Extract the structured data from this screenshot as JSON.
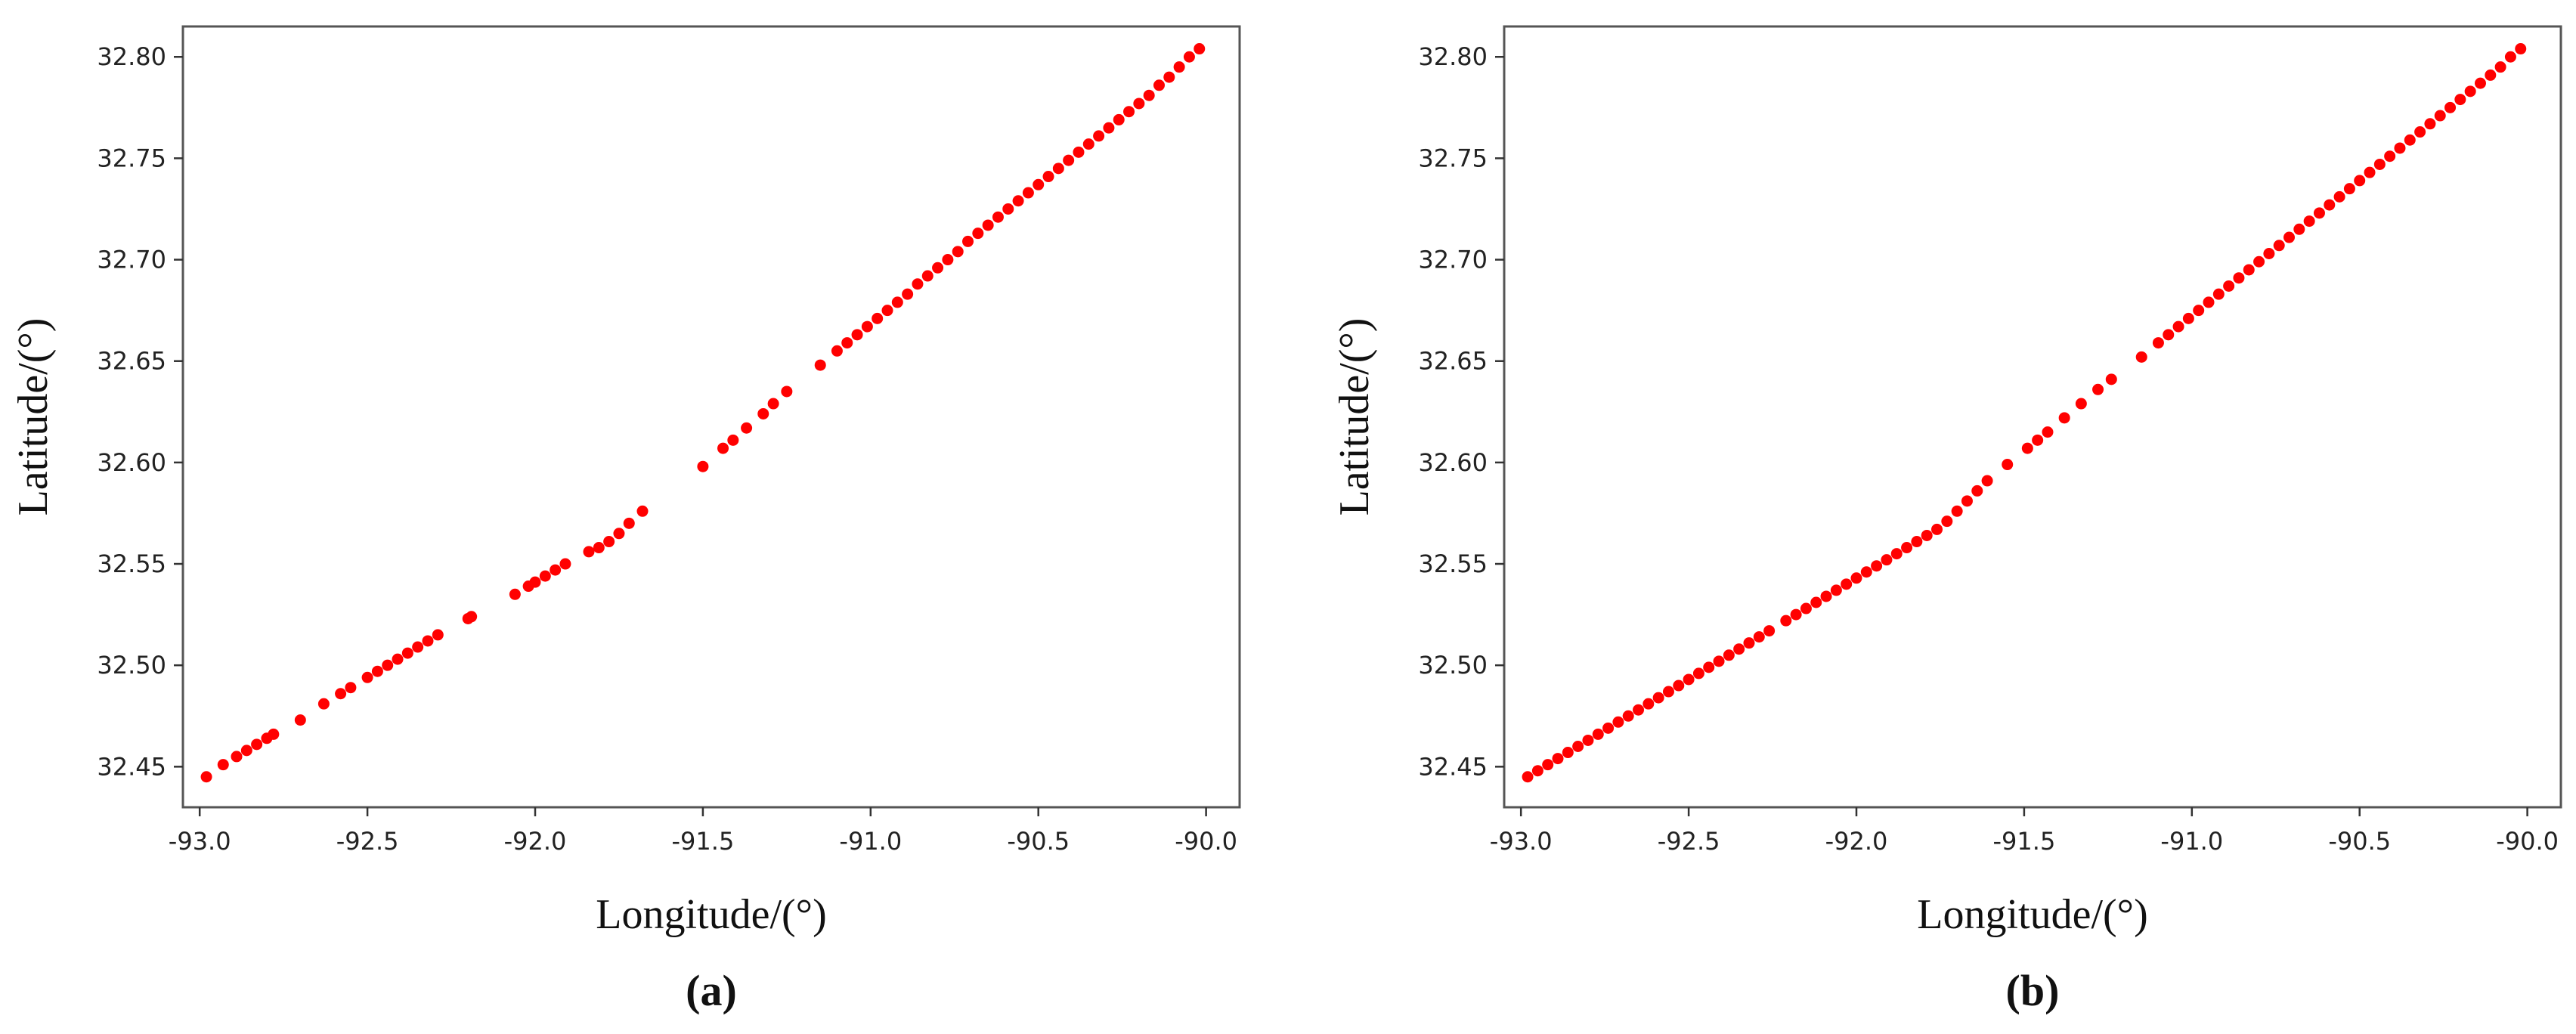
{
  "chart_data": [
    {
      "type": "scatter",
      "panel_label": "(a)",
      "xlabel": "Longitude/(°)",
      "ylabel": "Latitude/(°)",
      "xlim": [
        -93.05,
        -89.9
      ],
      "ylim": [
        32.43,
        32.815
      ],
      "xticks": [
        "-93.0",
        "-92.5",
        "-92.0",
        "-91.5",
        "-91.0",
        "-90.5",
        "-90.0"
      ],
      "yticks": [
        "32.45",
        "32.50",
        "32.55",
        "32.60",
        "32.65",
        "32.70",
        "32.75",
        "32.80"
      ],
      "grid": false,
      "color": "#ff0000",
      "points": [
        [
          -92.98,
          32.445
        ],
        [
          -92.93,
          32.451
        ],
        [
          -92.89,
          32.455
        ],
        [
          -92.86,
          32.458
        ],
        [
          -92.83,
          32.461
        ],
        [
          -92.8,
          32.464
        ],
        [
          -92.78,
          32.466
        ],
        [
          -92.7,
          32.473
        ],
        [
          -92.63,
          32.481
        ],
        [
          -92.58,
          32.486
        ],
        [
          -92.55,
          32.489
        ],
        [
          -92.5,
          32.494
        ],
        [
          -92.47,
          32.497
        ],
        [
          -92.44,
          32.5
        ],
        [
          -92.41,
          32.503
        ],
        [
          -92.38,
          32.506
        ],
        [
          -92.35,
          32.509
        ],
        [
          -92.32,
          32.512
        ],
        [
          -92.29,
          32.515
        ],
        [
          -92.2,
          32.523
        ],
        [
          -92.19,
          32.524
        ],
        [
          -92.06,
          32.535
        ],
        [
          -92.02,
          32.539
        ],
        [
          -92.0,
          32.541
        ],
        [
          -91.97,
          32.544
        ],
        [
          -91.94,
          32.547
        ],
        [
          -91.91,
          32.55
        ],
        [
          -91.84,
          32.556
        ],
        [
          -91.81,
          32.558
        ],
        [
          -91.78,
          32.561
        ],
        [
          -91.75,
          32.565
        ],
        [
          -91.72,
          32.57
        ],
        [
          -91.68,
          32.576
        ],
        [
          -91.5,
          32.598
        ],
        [
          -91.44,
          32.607
        ],
        [
          -91.41,
          32.611
        ],
        [
          -91.37,
          32.617
        ],
        [
          -91.32,
          32.624
        ],
        [
          -91.29,
          32.629
        ],
        [
          -91.25,
          32.635
        ],
        [
          -91.15,
          32.648
        ],
        [
          -91.1,
          32.655
        ],
        [
          -91.07,
          32.659
        ],
        [
          -91.04,
          32.663
        ],
        [
          -91.01,
          32.667
        ],
        [
          -90.98,
          32.671
        ],
        [
          -90.95,
          32.675
        ],
        [
          -90.92,
          32.679
        ],
        [
          -90.89,
          32.683
        ],
        [
          -90.86,
          32.688
        ],
        [
          -90.83,
          32.692
        ],
        [
          -90.8,
          32.696
        ],
        [
          -90.77,
          32.7
        ],
        [
          -90.74,
          32.704
        ],
        [
          -90.71,
          32.709
        ],
        [
          -90.68,
          32.713
        ],
        [
          -90.65,
          32.717
        ],
        [
          -90.62,
          32.721
        ],
        [
          -90.59,
          32.725
        ],
        [
          -90.56,
          32.729
        ],
        [
          -90.53,
          32.733
        ],
        [
          -90.5,
          32.737
        ],
        [
          -90.47,
          32.741
        ],
        [
          -90.44,
          32.745
        ],
        [
          -90.41,
          32.749
        ],
        [
          -90.38,
          32.753
        ],
        [
          -90.35,
          32.757
        ],
        [
          -90.32,
          32.761
        ],
        [
          -90.29,
          32.765
        ],
        [
          -90.26,
          32.769
        ],
        [
          -90.23,
          32.773
        ],
        [
          -90.2,
          32.777
        ],
        [
          -90.17,
          32.781
        ],
        [
          -90.14,
          32.786
        ],
        [
          -90.11,
          32.79
        ],
        [
          -90.08,
          32.795
        ],
        [
          -90.05,
          32.8
        ],
        [
          -90.02,
          32.804
        ]
      ]
    },
    {
      "type": "scatter",
      "panel_label": "(b)",
      "xlabel": "Longitude/(°)",
      "ylabel": "Latitude/(°)",
      "xlim": [
        -93.05,
        -89.9
      ],
      "ylim": [
        32.43,
        32.815
      ],
      "xticks": [
        "-93.0",
        "-92.5",
        "-92.0",
        "-91.5",
        "-91.0",
        "-90.5",
        "-90.0"
      ],
      "yticks": [
        "32.45",
        "32.50",
        "32.55",
        "32.60",
        "32.65",
        "32.70",
        "32.75",
        "32.80"
      ],
      "grid": false,
      "color": "#ff0000",
      "points": [
        [
          -92.98,
          32.445
        ],
        [
          -92.95,
          32.448
        ],
        [
          -92.92,
          32.451
        ],
        [
          -92.89,
          32.454
        ],
        [
          -92.86,
          32.457
        ],
        [
          -92.83,
          32.46
        ],
        [
          -92.8,
          32.463
        ],
        [
          -92.77,
          32.466
        ],
        [
          -92.74,
          32.469
        ],
        [
          -92.71,
          32.472
        ],
        [
          -92.68,
          32.475
        ],
        [
          -92.65,
          32.478
        ],
        [
          -92.62,
          32.481
        ],
        [
          -92.59,
          32.484
        ],
        [
          -92.56,
          32.487
        ],
        [
          -92.53,
          32.49
        ],
        [
          -92.5,
          32.493
        ],
        [
          -92.47,
          32.496
        ],
        [
          -92.44,
          32.499
        ],
        [
          -92.41,
          32.502
        ],
        [
          -92.38,
          32.505
        ],
        [
          -92.35,
          32.508
        ],
        [
          -92.32,
          32.511
        ],
        [
          -92.29,
          32.514
        ],
        [
          -92.26,
          32.517
        ],
        [
          -92.21,
          32.522
        ],
        [
          -92.18,
          32.525
        ],
        [
          -92.15,
          32.528
        ],
        [
          -92.12,
          32.531
        ],
        [
          -92.09,
          32.534
        ],
        [
          -92.06,
          32.537
        ],
        [
          -92.03,
          32.54
        ],
        [
          -92.0,
          32.543
        ],
        [
          -91.97,
          32.546
        ],
        [
          -91.94,
          32.549
        ],
        [
          -91.91,
          32.552
        ],
        [
          -91.88,
          32.555
        ],
        [
          -91.85,
          32.558
        ],
        [
          -91.82,
          32.561
        ],
        [
          -91.79,
          32.564
        ],
        [
          -91.76,
          32.567
        ],
        [
          -91.73,
          32.571
        ],
        [
          -91.7,
          32.576
        ],
        [
          -91.67,
          32.581
        ],
        [
          -91.64,
          32.586
        ],
        [
          -91.61,
          32.591
        ],
        [
          -91.55,
          32.599
        ],
        [
          -91.49,
          32.607
        ],
        [
          -91.46,
          32.611
        ],
        [
          -91.43,
          32.615
        ],
        [
          -91.38,
          32.622
        ],
        [
          -91.33,
          32.629
        ],
        [
          -91.28,
          32.636
        ],
        [
          -91.24,
          32.641
        ],
        [
          -91.15,
          32.652
        ],
        [
          -91.1,
          32.659
        ],
        [
          -91.07,
          32.663
        ],
        [
          -91.04,
          32.667
        ],
        [
          -91.01,
          32.671
        ],
        [
          -90.98,
          32.675
        ],
        [
          -90.95,
          32.679
        ],
        [
          -90.92,
          32.683
        ],
        [
          -90.89,
          32.687
        ],
        [
          -90.86,
          32.691
        ],
        [
          -90.83,
          32.695
        ],
        [
          -90.8,
          32.699
        ],
        [
          -90.77,
          32.703
        ],
        [
          -90.74,
          32.707
        ],
        [
          -90.71,
          32.711
        ],
        [
          -90.68,
          32.715
        ],
        [
          -90.65,
          32.719
        ],
        [
          -90.62,
          32.723
        ],
        [
          -90.59,
          32.727
        ],
        [
          -90.56,
          32.731
        ],
        [
          -90.53,
          32.735
        ],
        [
          -90.5,
          32.739
        ],
        [
          -90.47,
          32.743
        ],
        [
          -90.44,
          32.747
        ],
        [
          -90.41,
          32.751
        ],
        [
          -90.38,
          32.755
        ],
        [
          -90.35,
          32.759
        ],
        [
          -90.32,
          32.763
        ],
        [
          -90.29,
          32.767
        ],
        [
          -90.26,
          32.771
        ],
        [
          -90.23,
          32.775
        ],
        [
          -90.2,
          32.779
        ],
        [
          -90.17,
          32.783
        ],
        [
          -90.14,
          32.787
        ],
        [
          -90.11,
          32.791
        ],
        [
          -90.08,
          32.795
        ],
        [
          -90.05,
          32.8
        ],
        [
          -90.02,
          32.804
        ]
      ]
    }
  ]
}
